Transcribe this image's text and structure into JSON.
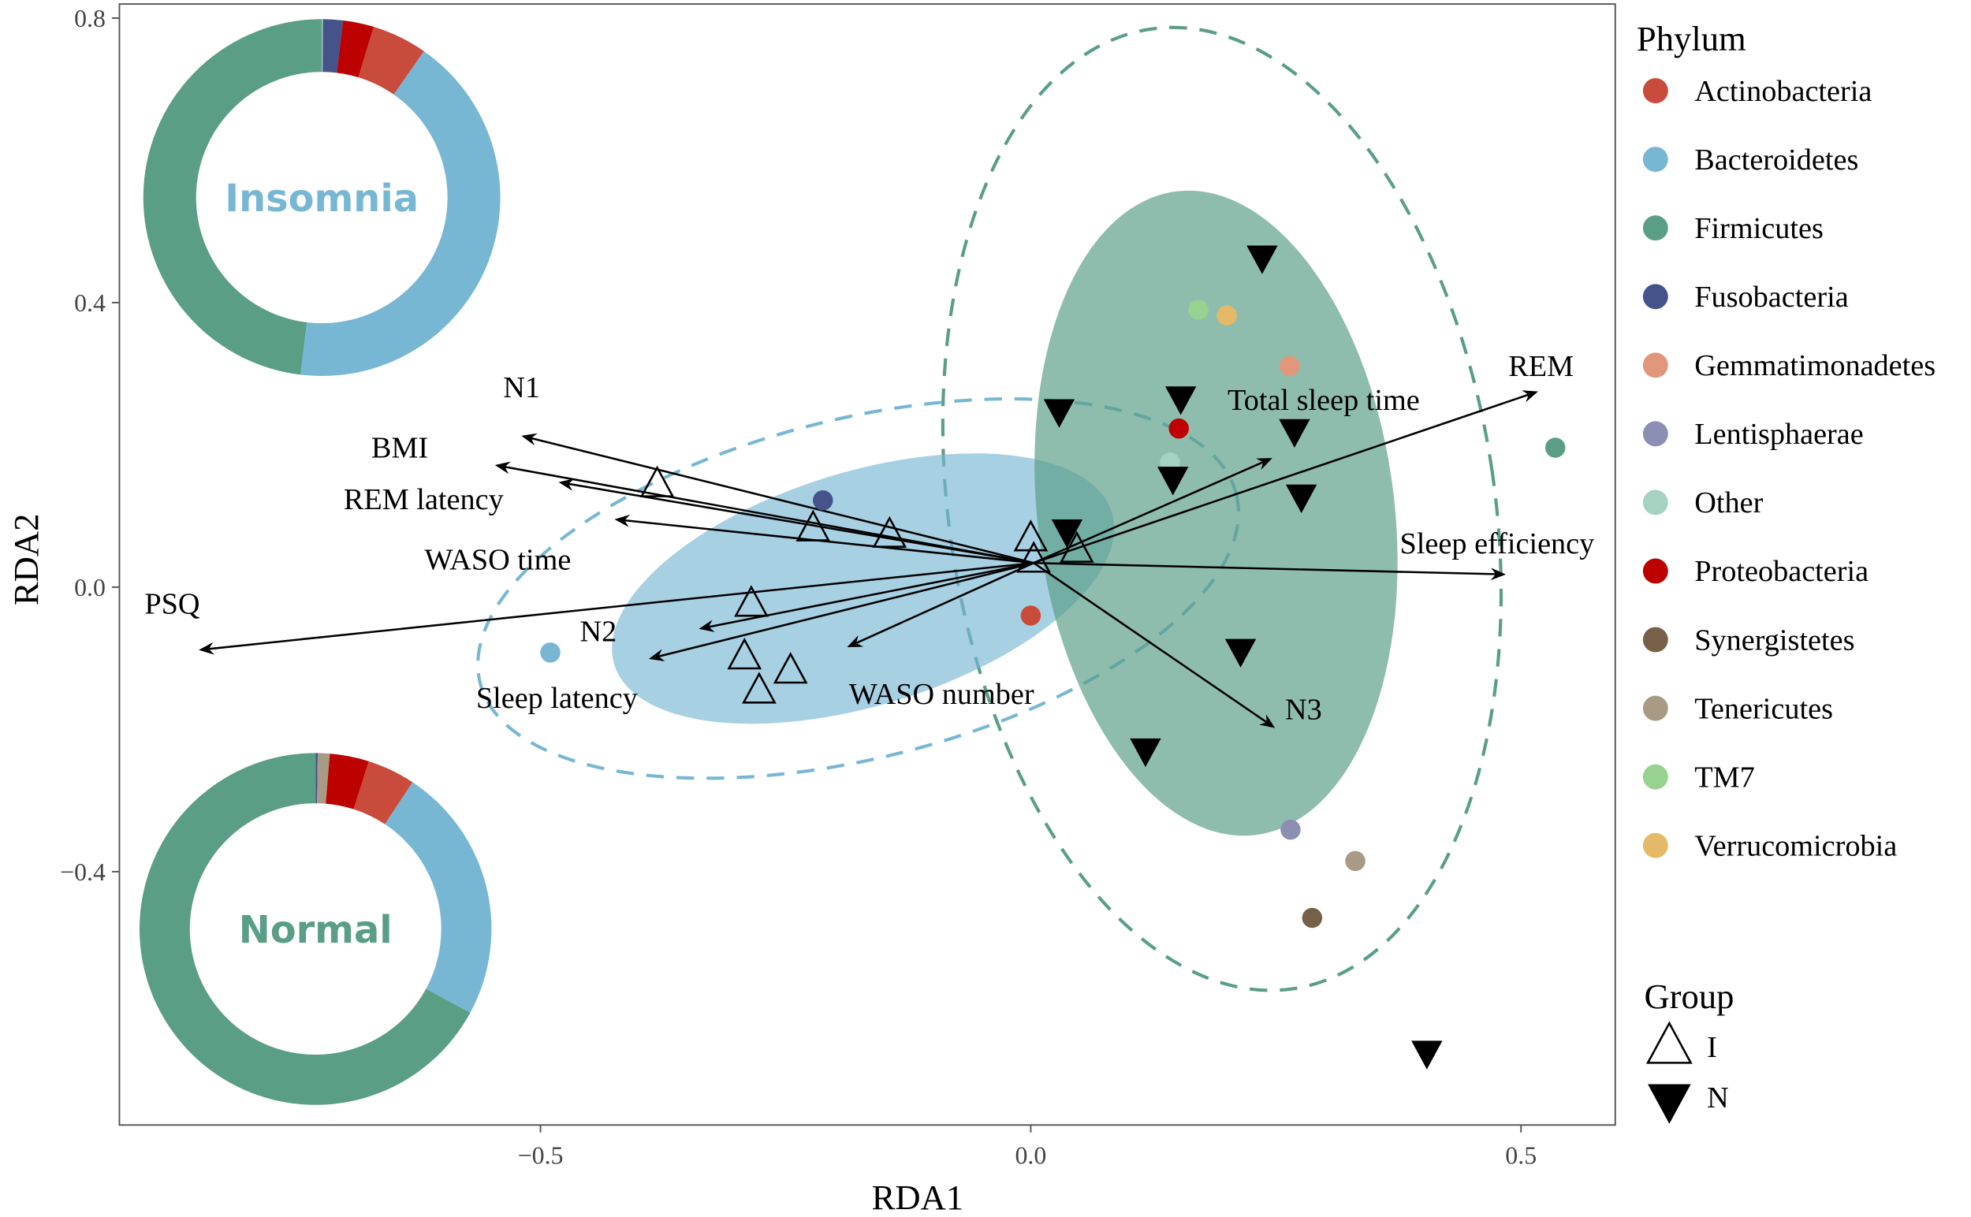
{
  "chart_data": {
    "type": "scatter",
    "subtype": "RDA biplot",
    "xlabel": "RDA1",
    "ylabel": "RDA2",
    "xlim": [
      -0.93,
      0.6
    ],
    "ylim": [
      -0.756,
      0.82
    ],
    "xticks": [
      -0.5,
      0.0,
      0.5
    ],
    "xtick_labels": [
      "−0.5",
      "0.0",
      "0.5"
    ],
    "yticks": [
      -0.4,
      0.0,
      0.4,
      0.8
    ],
    "ytick_labels": [
      "−0.4",
      "0.0",
      "0.4",
      "0.8"
    ],
    "grid": false,
    "legend_placement": "right",
    "phylum_legend": {
      "title": "Phylum",
      "items": [
        {
          "name": "Actinobacteria",
          "color": "#c84b3b"
        },
        {
          "name": "Bacteroidetes",
          "color": "#78b7d4"
        },
        {
          "name": "Firmicutes",
          "color": "#5a9e86"
        },
        {
          "name": "Fusobacteria",
          "color": "#46538a"
        },
        {
          "name": "Gemmatimonadetes",
          "color": "#e0977c"
        },
        {
          "name": "Lentisphaerae",
          "color": "#8a8fb3"
        },
        {
          "name": "Other",
          "color": "#a6d2c2"
        },
        {
          "name": "Proteobacteria",
          "color": "#bd0000"
        },
        {
          "name": "Synergistetes",
          "color": "#77604a"
        },
        {
          "name": "Tenericutes",
          "color": "#a89a85"
        },
        {
          "name": "TM7",
          "color": "#97d290"
        },
        {
          "name": "Verrucomicrobia",
          "color": "#e4ba68"
        }
      ]
    },
    "group_legend": {
      "title": "Group",
      "items": [
        {
          "name": "I",
          "shape": "open-triangle-up"
        },
        {
          "name": "N",
          "shape": "filled-triangle-down"
        }
      ]
    },
    "phylum_points": [
      {
        "phylum": "Actinobacteria",
        "x": 0.0,
        "y": -0.04
      },
      {
        "phylum": "Bacteroidetes",
        "x": -0.49,
        "y": -0.092
      },
      {
        "phylum": "Firmicutes",
        "x": 0.535,
        "y": 0.196
      },
      {
        "phylum": "Fusobacteria",
        "x": -0.212,
        "y": 0.122
      },
      {
        "phylum": "Gemmatimonadetes",
        "x": 0.264,
        "y": 0.311
      },
      {
        "phylum": "Lentisphaerae",
        "x": 0.265,
        "y": -0.341
      },
      {
        "phylum": "Other",
        "x": 0.142,
        "y": 0.175
      },
      {
        "phylum": "Proteobacteria",
        "x": 0.151,
        "y": 0.223
      },
      {
        "phylum": "Synergistetes",
        "x": 0.287,
        "y": -0.465
      },
      {
        "phylum": "Tenericutes",
        "x": 0.331,
        "y": -0.385
      },
      {
        "phylum": "TM7",
        "x": 0.171,
        "y": 0.39
      },
      {
        "phylum": "Verrucomicrobia",
        "x": 0.2,
        "y": 0.382
      }
    ],
    "samples": {
      "I": [
        {
          "x": -0.381,
          "y": 0.145
        },
        {
          "x": -0.222,
          "y": 0.083
        },
        {
          "x": -0.144,
          "y": 0.074
        },
        {
          "x": -0.285,
          "y": -0.023
        },
        {
          "x": -0.292,
          "y": -0.097
        },
        {
          "x": -0.245,
          "y": -0.117
        },
        {
          "x": -0.277,
          "y": -0.145
        },
        {
          "x": 0.0,
          "y": 0.069
        },
        {
          "x": 0.003,
          "y": 0.039
        },
        {
          "x": 0.047,
          "y": 0.053
        }
      ],
      "N": [
        {
          "x": 0.236,
          "y": 0.463
        },
        {
          "x": 0.029,
          "y": 0.247
        },
        {
          "x": 0.153,
          "y": 0.265
        },
        {
          "x": 0.269,
          "y": 0.219
        },
        {
          "x": 0.145,
          "y": 0.152
        },
        {
          "x": 0.276,
          "y": 0.127
        },
        {
          "x": 0.037,
          "y": 0.078
        },
        {
          "x": 0.214,
          "y": -0.09
        },
        {
          "x": 0.117,
          "y": -0.23
        },
        {
          "x": 0.404,
          "y": -0.655
        }
      ]
    },
    "arrows": {
      "origin": {
        "x": 0.003,
        "y": 0.034
      },
      "vectors": [
        {
          "label": "N1",
          "x": -0.517,
          "y": 0.212
        },
        {
          "label": "BMI",
          "x": -0.544,
          "y": 0.171
        },
        {
          "label": "REM latency",
          "x": -0.479,
          "y": 0.147
        },
        {
          "label": "WASO time",
          "x": -0.422,
          "y": 0.095
        },
        {
          "label": "PSQ",
          "x": -0.846,
          "y": -0.088
        },
        {
          "label": "N2",
          "x": -0.336,
          "y": -0.058
        },
        {
          "label": "Sleep latency",
          "x": -0.387,
          "y": -0.1
        },
        {
          "label": "WASO number",
          "x": -0.185,
          "y": -0.083
        },
        {
          "label": "REM",
          "x": 0.515,
          "y": 0.274
        },
        {
          "label": "Total sleep time",
          "x": 0.244,
          "y": 0.18
        },
        {
          "label": "Sleep efficiency",
          "x": 0.482,
          "y": 0.018
        },
        {
          "label": "N3",
          "x": 0.247,
          "y": -0.196
        }
      ]
    },
    "group_ellipses": [
      {
        "group": "I",
        "style": "filled",
        "color": "#78b7d4",
        "center": {
          "x": -0.171,
          "y": -0.002
        }
      },
      {
        "group": "I",
        "style": "dashed",
        "color": "#78b7d4",
        "center": {
          "x": -0.176,
          "y": -0.002
        }
      },
      {
        "group": "N",
        "style": "filled",
        "color": "#5a9e86",
        "center": {
          "x": 0.189,
          "y": 0.104
        }
      },
      {
        "group": "N",
        "style": "dashed",
        "color": "#5a9e86",
        "center": {
          "x": 0.195,
          "y": 0.11
        }
      }
    ],
    "donuts": [
      {
        "label": "Insomnia",
        "label_color": "#78b7d4",
        "slices": [
          {
            "phylum": "Other",
            "value": 0.1
          },
          {
            "phylum": "Fusobacteria",
            "value": 1.8
          },
          {
            "phylum": "Proteobacteria",
            "value": 2.8
          },
          {
            "phylum": "Actinobacteria",
            "value": 5.0
          },
          {
            "phylum": "Bacteroidetes",
            "value": 42.2
          },
          {
            "phylum": "Firmicutes",
            "value": 48.1
          }
        ]
      },
      {
        "label": "Normal",
        "label_color": "#5a9e86",
        "slices": [
          {
            "phylum": "Fusobacteria",
            "value": 0.2
          },
          {
            "phylum": "Tenericutes",
            "value": 1.1
          },
          {
            "phylum": "Proteobacteria",
            "value": 3.6
          },
          {
            "phylum": "Actinobacteria",
            "value": 4.4
          },
          {
            "phylum": "Bacteroidetes",
            "value": 23.6
          },
          {
            "phylum": "Firmicutes",
            "value": 67.1
          }
        ]
      }
    ]
  }
}
